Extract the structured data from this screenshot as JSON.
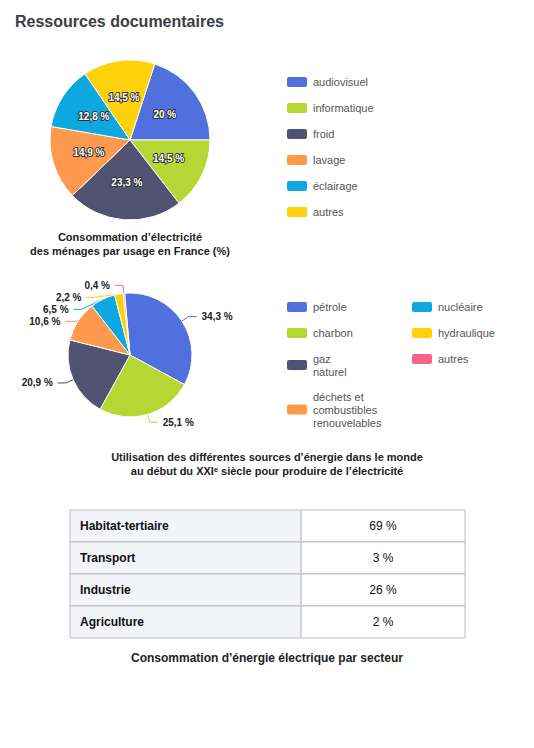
{
  "title": "Ressources documentaires",
  "chart_data": [
    {
      "type": "pie",
      "title": "Consommation d’électricité\ndes ménages par usage en France (%)",
      "categories": [
        "audiovisuel",
        "informatique",
        "froid",
        "lavage",
        "éclairage",
        "autres"
      ],
      "values": [
        20.0,
        14.5,
        23.3,
        14.9,
        12.8,
        14.5
      ],
      "value_labels": [
        "20 %",
        "14,5 %",
        "23,3 %",
        "14,9 %",
        "12,8 %",
        "14,5 %"
      ],
      "data_labels": true,
      "legend": "right"
    },
    {
      "type": "pie",
      "title": "Utilisation des différentes sources d’énergie dans le monde\nau début du XXIᵉ siècle pour produire de l’électricité",
      "categories": [
        "pétrole",
        "charbon",
        "gaz\nnaturel",
        "déchets et\ncombustibles\nrenouvelables",
        "nucléaire",
        "hydraulique",
        "autres"
      ],
      "values": [
        34.3,
        25.1,
        20.9,
        10.6,
        6.5,
        2.2,
        0.4
      ],
      "value_labels": [
        "34,3 %",
        "25,1 %",
        "20,9 %",
        "10,6 %",
        "6,5 %",
        "2,2 %",
        "0,4 %"
      ],
      "data_labels": true,
      "legend": "right"
    },
    {
      "type": "table",
      "title": "Consommation d’énergie électrique par secteur",
      "categories": [
        "Habitat-tertiaire",
        "Transport",
        "Industrie",
        "Agriculture"
      ],
      "values": [
        69,
        3,
        26,
        2
      ],
      "value_labels": [
        "69 %",
        "3 %",
        "26 %",
        "2 %"
      ]
    }
  ]
}
